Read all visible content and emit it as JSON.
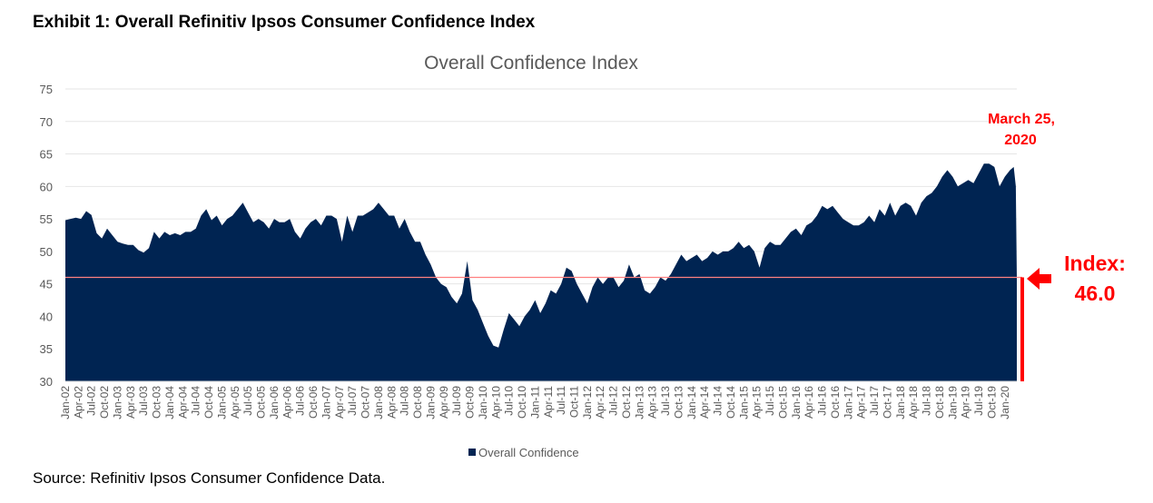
{
  "exhibit_title": "Exhibit 1: Overall Refinitiv Ipsos Consumer Confidence Index",
  "source": "Source: Refinitiv Ipsos Consumer Confidence Data.",
  "colors": {
    "area": "#002452",
    "reference_line": "#ff8080",
    "annotation": "#ff0000",
    "grid": "#e6e6e6"
  },
  "chart_data": {
    "type": "area",
    "title": "Overall Confidence Index",
    "xlabel": "",
    "ylabel": "",
    "ylim": [
      30,
      75
    ],
    "y_ticks": [
      "30",
      "35",
      "40",
      "45",
      "50",
      "55",
      "60",
      "65",
      "70",
      "75"
    ],
    "x_tick_labels": [
      "Jan-02",
      "Apr-02",
      "Jul-02",
      "Oct-02",
      "Jan-03",
      "Apr-03",
      "Jul-03",
      "Oct-03",
      "Jan-04",
      "Apr-04",
      "Jul-04",
      "Oct-04",
      "Jan-05",
      "Apr-05",
      "Jul-05",
      "Oct-05",
      "Jan-06",
      "Apr-06",
      "Jul-06",
      "Oct-06",
      "Jan-07",
      "Apr-07",
      "Jul-07",
      "Oct-07",
      "Jan-08",
      "Apr-08",
      "Jul-08",
      "Oct-08",
      "Jan-09",
      "Apr-09",
      "Jul-09",
      "Oct-09",
      "Jan-10",
      "Apr-10",
      "Jul-10",
      "Oct-10",
      "Jan-11",
      "Apr-11",
      "Jul-11",
      "Oct-11",
      "Jan-12",
      "Apr-12",
      "Jul-12",
      "Oct-12",
      "Jan-13",
      "Apr-13",
      "Jul-13",
      "Oct-13",
      "Jan-14",
      "Apr-14",
      "Jul-14",
      "Oct-14",
      "Jan-15",
      "Apr-15",
      "Jul-15",
      "Oct-15",
      "Jan-16",
      "Apr-16",
      "Jul-16",
      "Oct-16",
      "Jan-17",
      "Apr-17",
      "Jul-17",
      "Oct-17",
      "Jan-18",
      "Apr-18",
      "Jul-18",
      "Oct-18",
      "Jan-19",
      "Apr-19",
      "Jul-19",
      "Oct-19",
      "Jan-20"
    ],
    "x_start": 2002.0,
    "x_end": 2020.23,
    "series": [
      {
        "name": "Overall Confidence",
        "points": [
          [
            2002.0,
            54.8
          ],
          [
            2002.1,
            55.0
          ],
          [
            2002.2,
            55.2
          ],
          [
            2002.3,
            55.0
          ],
          [
            2002.4,
            56.2
          ],
          [
            2002.5,
            55.6
          ],
          [
            2002.6,
            52.8
          ],
          [
            2002.7,
            52.0
          ],
          [
            2002.8,
            53.5
          ],
          [
            2002.9,
            52.5
          ],
          [
            2003.0,
            51.5
          ],
          [
            2003.1,
            51.2
          ],
          [
            2003.2,
            51.0
          ],
          [
            2003.3,
            51.0
          ],
          [
            2003.4,
            50.2
          ],
          [
            2003.5,
            49.8
          ],
          [
            2003.6,
            50.5
          ],
          [
            2003.7,
            53.0
          ],
          [
            2003.8,
            52.0
          ],
          [
            2003.9,
            53.0
          ],
          [
            2004.0,
            52.5
          ],
          [
            2004.1,
            52.8
          ],
          [
            2004.2,
            52.5
          ],
          [
            2004.3,
            53.0
          ],
          [
            2004.4,
            53.0
          ],
          [
            2004.5,
            53.5
          ],
          [
            2004.6,
            55.5
          ],
          [
            2004.7,
            56.5
          ],
          [
            2004.8,
            54.8
          ],
          [
            2004.9,
            55.5
          ],
          [
            2005.0,
            54.0
          ],
          [
            2005.1,
            55.0
          ],
          [
            2005.2,
            55.5
          ],
          [
            2005.3,
            56.5
          ],
          [
            2005.4,
            57.5
          ],
          [
            2005.5,
            56.0
          ],
          [
            2005.6,
            54.5
          ],
          [
            2005.7,
            55.0
          ],
          [
            2005.8,
            54.5
          ],
          [
            2005.9,
            53.5
          ],
          [
            2006.0,
            55.0
          ],
          [
            2006.1,
            54.5
          ],
          [
            2006.2,
            54.5
          ],
          [
            2006.3,
            55.0
          ],
          [
            2006.4,
            53.0
          ],
          [
            2006.5,
            52.0
          ],
          [
            2006.6,
            53.5
          ],
          [
            2006.7,
            54.5
          ],
          [
            2006.8,
            55.0
          ],
          [
            2006.9,
            54.0
          ],
          [
            2007.0,
            55.5
          ],
          [
            2007.1,
            55.5
          ],
          [
            2007.2,
            55.0
          ],
          [
            2007.3,
            51.5
          ],
          [
            2007.4,
            55.5
          ],
          [
            2007.5,
            53.0
          ],
          [
            2007.6,
            55.5
          ],
          [
            2007.7,
            55.5
          ],
          [
            2007.8,
            56.0
          ],
          [
            2007.9,
            56.5
          ],
          [
            2008.0,
            57.5
          ],
          [
            2008.1,
            56.5
          ],
          [
            2008.2,
            55.5
          ],
          [
            2008.3,
            55.5
          ],
          [
            2008.4,
            53.5
          ],
          [
            2008.5,
            55.0
          ],
          [
            2008.6,
            53.0
          ],
          [
            2008.7,
            51.5
          ],
          [
            2008.8,
            51.5
          ],
          [
            2008.9,
            49.5
          ],
          [
            2009.0,
            48.0
          ],
          [
            2009.1,
            46.0
          ],
          [
            2009.2,
            45.0
          ],
          [
            2009.3,
            44.5
          ],
          [
            2009.4,
            43.0
          ],
          [
            2009.5,
            42.0
          ],
          [
            2009.6,
            43.5
          ],
          [
            2009.7,
            48.5
          ],
          [
            2009.8,
            42.5
          ],
          [
            2009.9,
            41.0
          ],
          [
            2010.0,
            39.0
          ],
          [
            2010.1,
            37.0
          ],
          [
            2010.2,
            35.5
          ],
          [
            2010.3,
            35.2
          ],
          [
            2010.4,
            38.0
          ],
          [
            2010.5,
            40.5
          ],
          [
            2010.6,
            39.5
          ],
          [
            2010.7,
            38.5
          ],
          [
            2010.8,
            40.0
          ],
          [
            2010.9,
            41.0
          ],
          [
            2011.0,
            42.5
          ],
          [
            2011.1,
            40.5
          ],
          [
            2011.2,
            42.0
          ],
          [
            2011.3,
            44.0
          ],
          [
            2011.4,
            43.5
          ],
          [
            2011.5,
            45.0
          ],
          [
            2011.6,
            47.5
          ],
          [
            2011.7,
            47.0
          ],
          [
            2011.8,
            45.0
          ],
          [
            2011.9,
            43.5
          ],
          [
            2012.0,
            42.0
          ],
          [
            2012.1,
            44.5
          ],
          [
            2012.2,
            46.0
          ],
          [
            2012.3,
            45.0
          ],
          [
            2012.4,
            46.0
          ],
          [
            2012.5,
            46.0
          ],
          [
            2012.6,
            44.5
          ],
          [
            2012.7,
            45.5
          ],
          [
            2012.8,
            48.0
          ],
          [
            2012.9,
            46.0
          ],
          [
            2013.0,
            46.5
          ],
          [
            2013.1,
            44.0
          ],
          [
            2013.2,
            43.5
          ],
          [
            2013.3,
            44.5
          ],
          [
            2013.4,
            46.0
          ],
          [
            2013.5,
            45.5
          ],
          [
            2013.6,
            46.5
          ],
          [
            2013.7,
            48.0
          ],
          [
            2013.8,
            49.5
          ],
          [
            2013.9,
            48.5
          ],
          [
            2014.0,
            49.0
          ],
          [
            2014.1,
            49.5
          ],
          [
            2014.2,
            48.5
          ],
          [
            2014.3,
            49.0
          ],
          [
            2014.4,
            50.0
          ],
          [
            2014.5,
            49.5
          ],
          [
            2014.6,
            50.0
          ],
          [
            2014.7,
            50.0
          ],
          [
            2014.8,
            50.5
          ],
          [
            2014.9,
            51.5
          ],
          [
            2015.0,
            50.5
          ],
          [
            2015.1,
            51.0
          ],
          [
            2015.2,
            50.0
          ],
          [
            2015.3,
            47.5
          ],
          [
            2015.4,
            50.5
          ],
          [
            2015.5,
            51.5
          ],
          [
            2015.6,
            51.0
          ],
          [
            2015.7,
            51.0
          ],
          [
            2015.8,
            52.0
          ],
          [
            2015.9,
            53.0
          ],
          [
            2016.0,
            53.5
          ],
          [
            2016.1,
            52.5
          ],
          [
            2016.2,
            54.0
          ],
          [
            2016.3,
            54.5
          ],
          [
            2016.4,
            55.5
          ],
          [
            2016.5,
            57.0
          ],
          [
            2016.6,
            56.5
          ],
          [
            2016.7,
            57.0
          ],
          [
            2016.8,
            56.0
          ],
          [
            2016.9,
            55.0
          ],
          [
            2017.0,
            54.5
          ],
          [
            2017.1,
            54.0
          ],
          [
            2017.2,
            54.0
          ],
          [
            2017.3,
            54.5
          ],
          [
            2017.4,
            55.5
          ],
          [
            2017.5,
            54.5
          ],
          [
            2017.6,
            56.5
          ],
          [
            2017.7,
            55.5
          ],
          [
            2017.8,
            57.5
          ],
          [
            2017.9,
            55.5
          ],
          [
            2018.0,
            57.0
          ],
          [
            2018.1,
            57.5
          ],
          [
            2018.2,
            57.0
          ],
          [
            2018.3,
            55.5
          ],
          [
            2018.4,
            57.5
          ],
          [
            2018.5,
            58.5
          ],
          [
            2018.6,
            59.0
          ],
          [
            2018.7,
            60.0
          ],
          [
            2018.8,
            61.5
          ],
          [
            2018.9,
            62.5
          ],
          [
            2019.0,
            61.5
          ],
          [
            2019.1,
            60.0
          ],
          [
            2019.2,
            60.5
          ],
          [
            2019.3,
            61.0
          ],
          [
            2019.4,
            60.5
          ],
          [
            2019.5,
            62.0
          ],
          [
            2019.6,
            63.5
          ],
          [
            2019.7,
            63.5
          ],
          [
            2019.8,
            63.0
          ],
          [
            2019.9,
            60.0
          ],
          [
            2020.0,
            61.5
          ],
          [
            2020.1,
            62.5
          ],
          [
            2020.17,
            63.0
          ],
          [
            2020.21,
            60.0
          ],
          [
            2020.23,
            46.0
          ]
        ]
      }
    ],
    "reference_line": {
      "value": 46.0
    },
    "annotation": {
      "date_label_line1": "March 25,",
      "date_label_line2": "2020",
      "index_label_line1": "Index:",
      "index_label_line2": "46.0"
    },
    "legend": {
      "label": "Overall Confidence",
      "position": "bottom"
    }
  }
}
